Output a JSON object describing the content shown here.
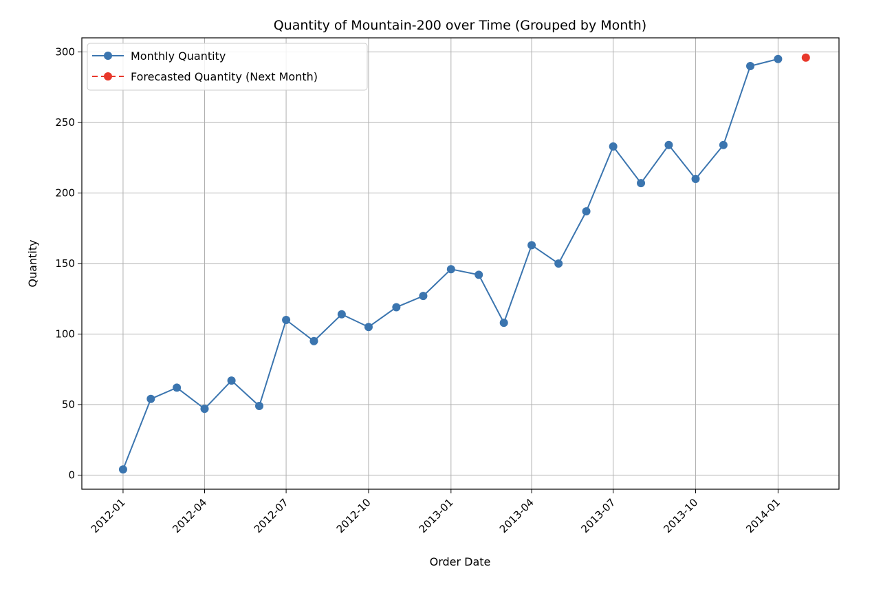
{
  "chart_data": {
    "type": "line",
    "title": "Quantity of Mountain-200 over Time (Grouped by Month)",
    "xlabel": "Order Date",
    "ylabel": "Quantity",
    "ylim": [
      -10,
      310
    ],
    "xlim": [
      "2011-11-16",
      "2014-03-10"
    ],
    "grid": true,
    "legend_position": "top-left",
    "x_ticks": [
      "2012-01",
      "2012-04",
      "2012-07",
      "2012-10",
      "2013-01",
      "2013-04",
      "2013-07",
      "2013-10",
      "2014-01"
    ],
    "y_ticks": [
      0,
      50,
      100,
      150,
      200,
      250,
      300
    ],
    "series": [
      {
        "name": "Monthly Quantity",
        "color": "#3b75af",
        "style": "line-with-markers",
        "x": [
          "2012-01",
          "2012-02",
          "2012-03",
          "2012-04",
          "2012-05",
          "2012-06",
          "2012-07",
          "2012-08",
          "2012-09",
          "2012-10",
          "2012-11",
          "2012-12",
          "2013-01",
          "2013-02",
          "2013-03",
          "2013-04",
          "2013-05",
          "2013-06",
          "2013-07",
          "2013-08",
          "2013-09",
          "2013-10",
          "2013-11",
          "2013-12",
          "2014-01"
        ],
        "values": [
          4,
          54,
          62,
          47,
          67,
          49,
          110,
          95,
          114,
          105,
          119,
          127,
          146,
          142,
          108,
          163,
          150,
          187,
          233,
          207,
          234,
          210,
          234,
          290,
          295
        ]
      },
      {
        "name": "Forecasted Quantity (Next Month)",
        "color": "#e8382b",
        "style": "dashed-with-markers",
        "x": [
          "2014-02"
        ],
        "values": [
          296
        ]
      }
    ]
  }
}
